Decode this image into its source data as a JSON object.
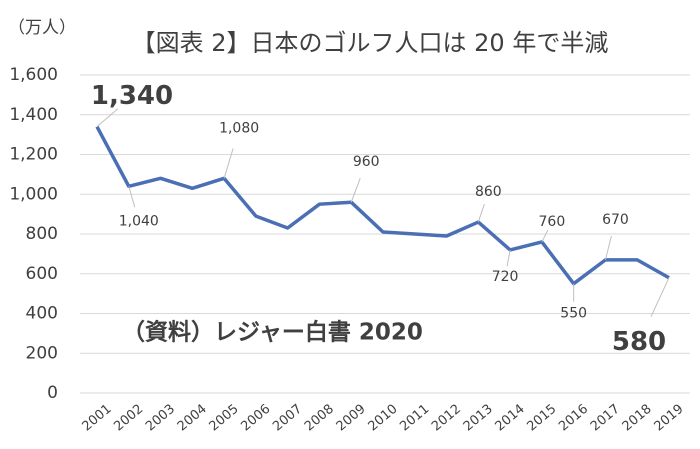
{
  "chart_data": {
    "type": "line",
    "title": "【図表 2】日本のゴルフ人口は 20 年で半減",
    "y_axis_label": "（万人）",
    "annotation": "（資料）レジャー白書 2020",
    "categories": [
      "2001",
      "2002",
      "2003",
      "2004",
      "2005",
      "2006",
      "2007",
      "2008",
      "2009",
      "2010",
      "2011",
      "2012",
      "2013",
      "2014",
      "2015",
      "2016",
      "2017",
      "2018",
      "2019"
    ],
    "values": [
      1340,
      1040,
      1080,
      1030,
      1080,
      890,
      830,
      950,
      960,
      810,
      800,
      790,
      860,
      720,
      760,
      550,
      670,
      670,
      580
    ],
    "value_labels": [
      "1,340",
      "1,040",
      null,
      null,
      "1,080",
      null,
      null,
      null,
      "960",
      null,
      null,
      null,
      "860",
      "720",
      "760",
      "550",
      "670",
      null,
      "580"
    ],
    "color": "#4a6fb5",
    "ylim": [
      0,
      1600
    ],
    "yticks": [
      0,
      200,
      400,
      600,
      800,
      {
        "value": 1000,
        "label": "1,000"
      },
      {
        "value": 1200,
        "label": "1,200"
      },
      {
        "value": 1400,
        "label": "1,400"
      },
      {
        "value": 1600,
        "label": "1,600"
      }
    ],
    "grid": true
  }
}
